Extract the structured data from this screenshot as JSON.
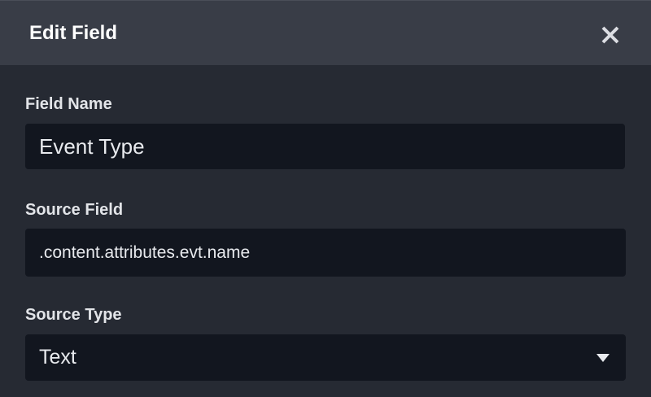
{
  "dialog": {
    "title": "Edit Field",
    "close_icon": "close-icon"
  },
  "fields": {
    "field_name": {
      "label": "Field Name",
      "value": "Event Type"
    },
    "source_field": {
      "label": "Source Field",
      "value": ".content.attributes.evt.name"
    },
    "source_type": {
      "label": "Source Type",
      "value": "Text",
      "icon": "chevron-down-icon"
    }
  }
}
